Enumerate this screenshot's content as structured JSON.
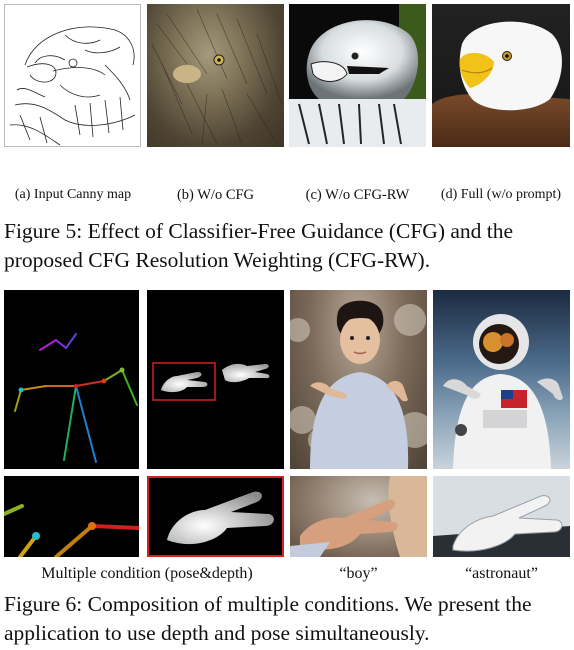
{
  "figure5": {
    "subcaptions": {
      "a": "(a) Input Canny map",
      "b": "(b) W/o CFG",
      "c": "(c) W/o CFG-RW",
      "d": "(d) Full (w/o prompt)"
    },
    "caption": "Figure 5: Effect of Classifier-Free Guidance (CFG) and the proposed CFG Resolution Weighting (CFG-RW)."
  },
  "figure6": {
    "subcaptions": {
      "left": "Multiple condition (pose&depth)",
      "boy": "“boy”",
      "astronaut": "“astronaut”"
    },
    "caption": "Figure 6: Composition of multiple conditions. We present the application to use depth and pose simultaneously."
  },
  "colors": {
    "highlight_box": "#d42020",
    "pose_background": "#000000"
  }
}
